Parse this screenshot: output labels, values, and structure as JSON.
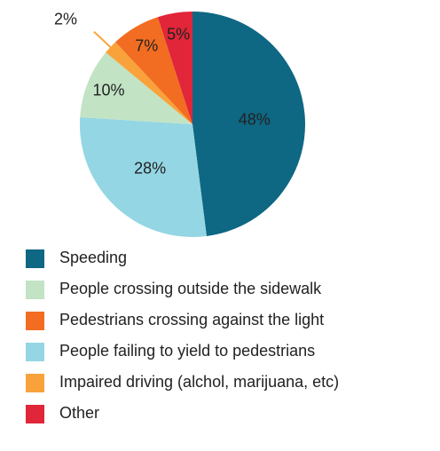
{
  "chart_data": {
    "type": "pie",
    "categories": [
      "Speeding",
      "People failing to yield to pedestrians",
      "People crossing outside the sidewalk",
      "Impaired driving (alchol, marijuana, etc)",
      "Pedestrians crossing against the light",
      "Other"
    ],
    "values": [
      48,
      28,
      10,
      2,
      7,
      5
    ],
    "value_labels": [
      "48%",
      "28%",
      "10%",
      "2%",
      "7%",
      "5%"
    ],
    "colors": [
      "#0e6783",
      "#94d6e3",
      "#c2e3c4",
      "#f9a23b",
      "#f26d21",
      "#e02638"
    ]
  }
}
